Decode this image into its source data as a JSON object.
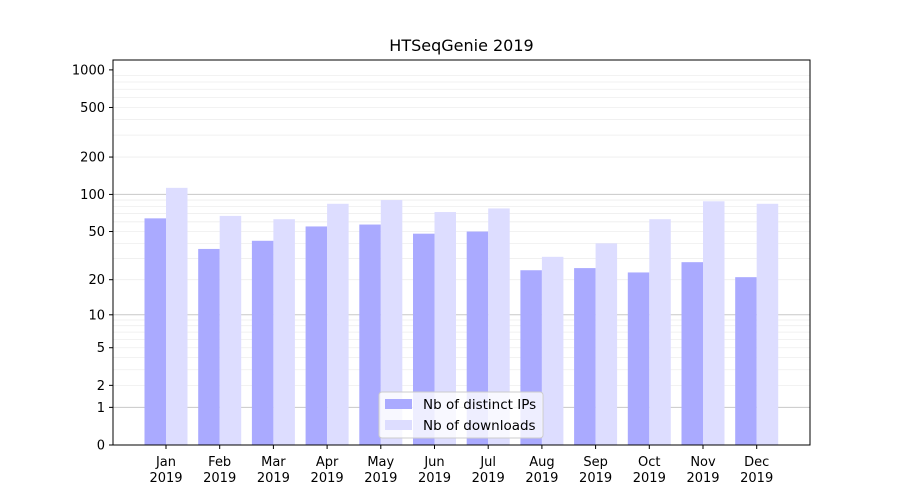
{
  "chart_data": {
    "type": "bar",
    "title": "HTSeqGenie 2019",
    "xlabel": "",
    "ylabel": "",
    "y_scale": "log(1+y)",
    "ylim": [
      0,
      1200
    ],
    "yticks": [
      0,
      1,
      2,
      5,
      10,
      20,
      50,
      100,
      200,
      500,
      1000
    ],
    "categories": [
      [
        "Jan",
        "2019"
      ],
      [
        "Feb",
        "2019"
      ],
      [
        "Mar",
        "2019"
      ],
      [
        "Apr",
        "2019"
      ],
      [
        "May",
        "2019"
      ],
      [
        "Jun",
        "2019"
      ],
      [
        "Jul",
        "2019"
      ],
      [
        "Aug",
        "2019"
      ],
      [
        "Sep",
        "2019"
      ],
      [
        "Oct",
        "2019"
      ],
      [
        "Nov",
        "2019"
      ],
      [
        "Dec",
        "2019"
      ]
    ],
    "series": [
      {
        "name": "Nb of distinct IPs",
        "color": "#aaaaff",
        "values": [
          64,
          36,
          42,
          55,
          57,
          48,
          50,
          24,
          25,
          23,
          28,
          21
        ]
      },
      {
        "name": "Nb of downloads",
        "color": "#ddddff",
        "values": [
          113,
          67,
          63,
          84,
          90,
          72,
          77,
          31,
          40,
          63,
          88,
          84
        ]
      }
    ],
    "grid": true,
    "legend_position": "bottom-center"
  }
}
